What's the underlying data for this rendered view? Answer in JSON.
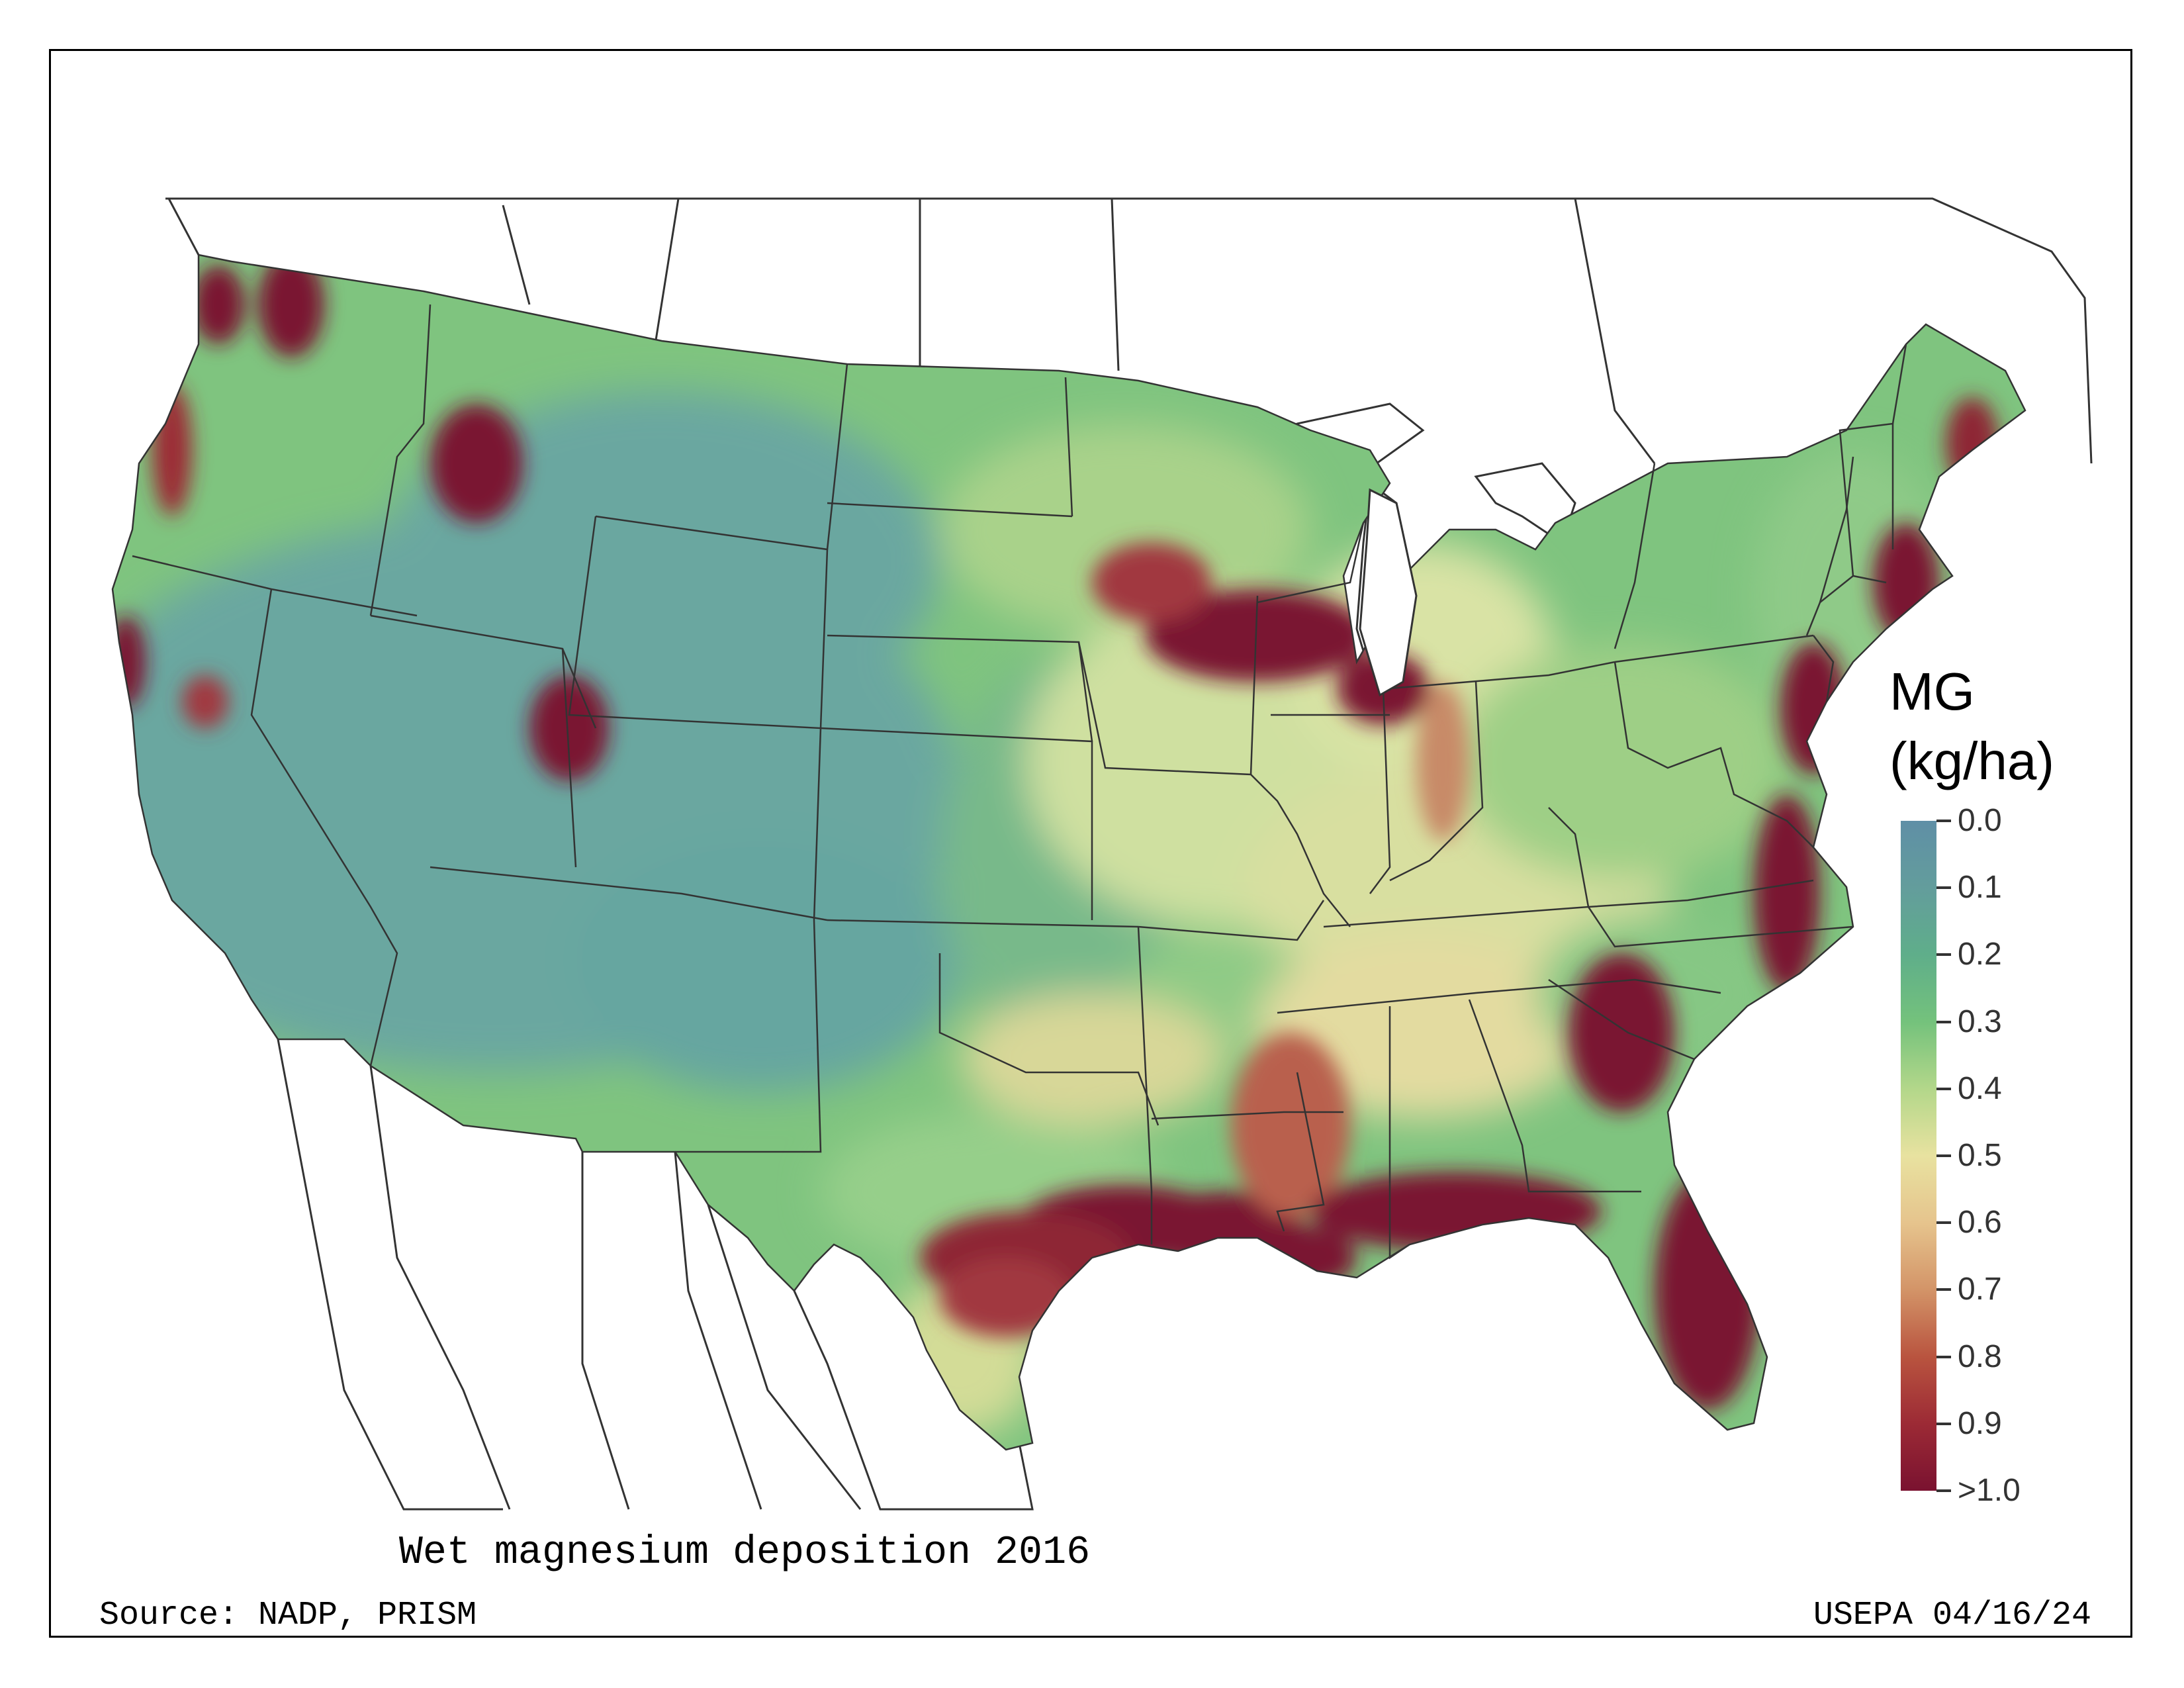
{
  "map": {
    "title": "Wet magnesium deposition 2016",
    "source": "Source: NADP, PRISM",
    "credit": "USEPA 04/16/24",
    "legend": {
      "title_line1": "MG",
      "title_line2": "(kg/ha)",
      "ticks": [
        "0.0",
        "0.1",
        "0.2",
        "0.3",
        "0.4",
        "0.5",
        "0.6",
        "0.7",
        "0.8",
        "0.9",
        ">1.0"
      ]
    },
    "colors": {
      "low": "#5f8fa6",
      "mid_low": "#74c27c",
      "mid": "#e8e2a0",
      "mid_high": "#d39468",
      "high": "#7a1230"
    }
  }
}
